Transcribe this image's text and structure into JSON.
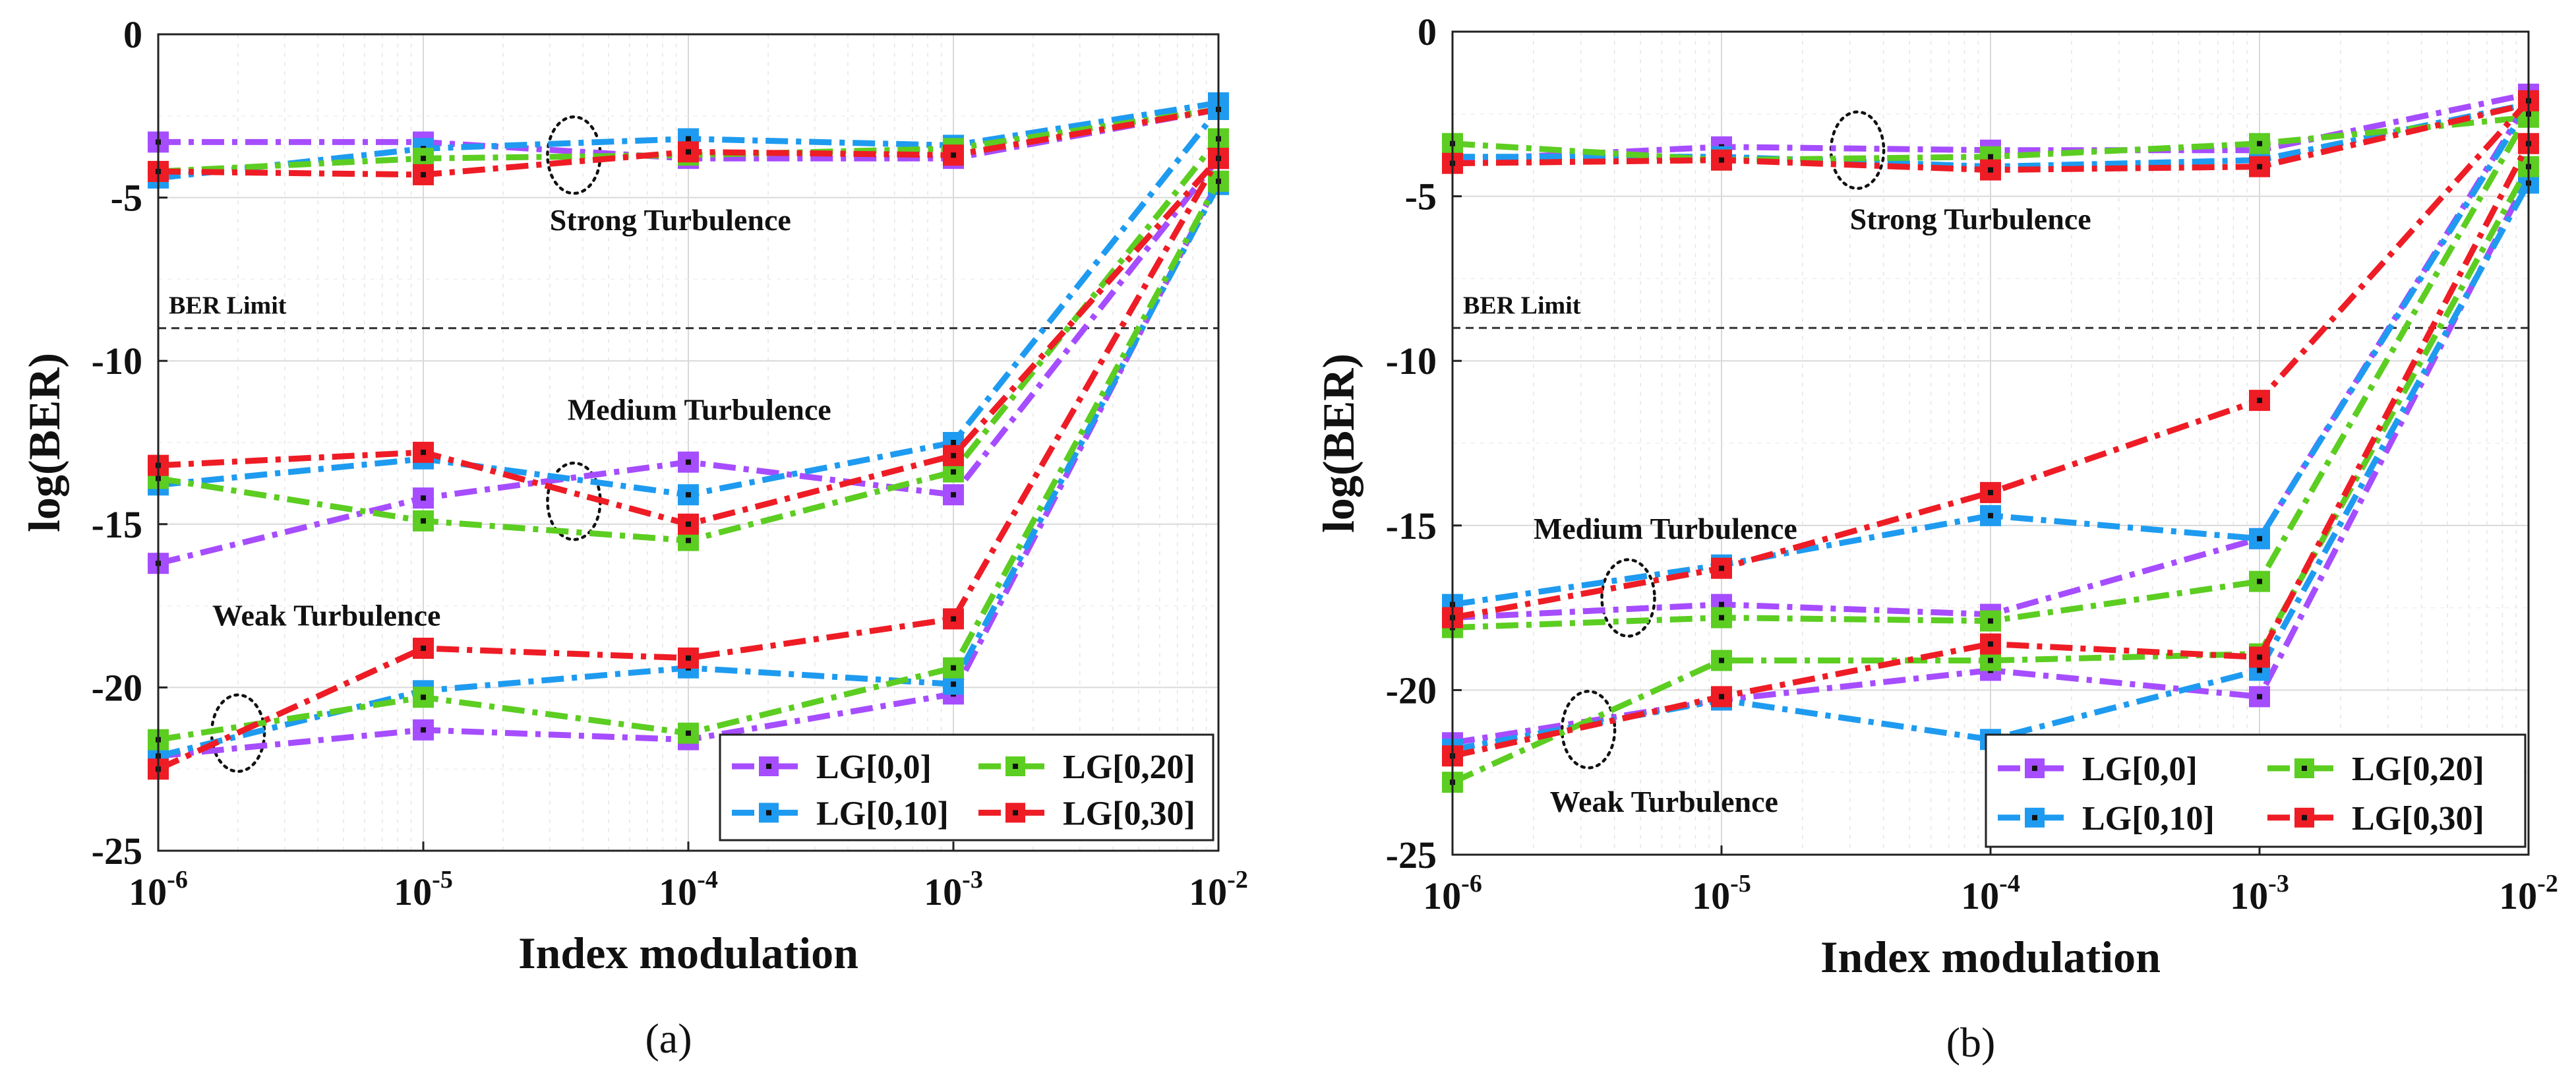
{
  "chart_data": [
    {
      "type": "line",
      "panel_label": "(a)",
      "xlabel": "Index modulation",
      "ylabel": "log(BER)",
      "x_scale": "log",
      "x": [
        1e-06,
        1e-05,
        0.0001,
        0.001,
        0.01
      ],
      "x_tick_labels": [
        {
          "base": "10",
          "exp": "-6"
        },
        {
          "base": "10",
          "exp": "-5"
        },
        {
          "base": "10",
          "exp": "-4"
        },
        {
          "base": "10",
          "exp": "-3"
        },
        {
          "base": "10",
          "exp": "-2"
        }
      ],
      "xlim": [
        1e-06,
        0.01
      ],
      "ylim": [
        -25,
        0
      ],
      "y_ticks": [
        0,
        -5,
        -10,
        -15,
        -20,
        -25
      ],
      "y_tick_labels": [
        "0",
        "-5",
        "-10",
        "-15",
        "-20",
        "-25"
      ],
      "grid": true,
      "ber_limit": {
        "value": -9,
        "label": "BER Limit"
      },
      "legend": {
        "placement": "bottom-right",
        "entries": [
          "LG[0,0]",
          "LG[0,20]",
          "LG[0,10]",
          "LG[0,30]"
        ]
      },
      "annotations": [
        {
          "text": "Strong Turbulence",
          "x": 3e-05,
          "y": -6.0
        },
        {
          "text": "Medium Turbulence",
          "x": 3.5e-05,
          "y": -11.8
        },
        {
          "text": "Weak Turbulence",
          "x": 1.6e-06,
          "y": -18.1
        }
      ],
      "ellipses": [
        {
          "x": 3.7e-05,
          "y": -3.7
        },
        {
          "x": 3.7e-05,
          "y": -14.3
        },
        {
          "x": 2e-06,
          "y": -21.4
        }
      ],
      "series": [
        {
          "name": "LG[0,0]",
          "color": "#a64dff",
          "group": "strong",
          "values": [
            -3.3,
            -3.3,
            -3.8,
            -3.8,
            -2.3
          ]
        },
        {
          "name": "LG[0,10]",
          "color": "#1e9bf0",
          "group": "strong",
          "values": [
            -4.4,
            -3.5,
            -3.2,
            -3.4,
            -2.1
          ]
        },
        {
          "name": "LG[0,20]",
          "color": "#5ccd21",
          "group": "strong",
          "values": [
            -4.2,
            -3.8,
            -3.7,
            -3.5,
            -2.3
          ]
        },
        {
          "name": "LG[0,30]",
          "color": "#ee1c25",
          "group": "strong",
          "values": [
            -4.2,
            -4.3,
            -3.6,
            -3.7,
            -2.3
          ]
        },
        {
          "name": "LG[0,0]",
          "color": "#a64dff",
          "group": "medium",
          "values": [
            -16.2,
            -14.2,
            -13.1,
            -14.1,
            -3.8
          ]
        },
        {
          "name": "LG[0,10]",
          "color": "#1e9bf0",
          "group": "medium",
          "values": [
            -13.8,
            -13.0,
            -14.1,
            -12.5,
            -2.3
          ]
        },
        {
          "name": "LG[0,20]",
          "color": "#5ccd21",
          "group": "medium",
          "values": [
            -13.6,
            -14.9,
            -15.5,
            -13.4,
            -3.2
          ]
        },
        {
          "name": "LG[0,30]",
          "color": "#ee1c25",
          "group": "medium",
          "values": [
            -13.2,
            -12.8,
            -15.0,
            -12.9,
            -3.8
          ]
        },
        {
          "name": "LG[0,0]",
          "color": "#a64dff",
          "group": "weak",
          "values": [
            -22.1,
            -21.3,
            -21.6,
            -20.2,
            -4.5
          ]
        },
        {
          "name": "LG[0,10]",
          "color": "#1e9bf0",
          "group": "weak",
          "values": [
            -22.1,
            -20.1,
            -19.4,
            -19.9,
            -4.6
          ]
        },
        {
          "name": "LG[0,20]",
          "color": "#5ccd21",
          "group": "weak",
          "values": [
            -21.6,
            -20.3,
            -21.4,
            -19.4,
            -4.5
          ]
        },
        {
          "name": "LG[0,30]",
          "color": "#ee1c25",
          "group": "weak",
          "values": [
            -22.5,
            -18.8,
            -19.1,
            -17.9,
            -3.8
          ]
        }
      ]
    },
    {
      "type": "line",
      "panel_label": "(b)",
      "xlabel": "Index modulation",
      "ylabel": "log(BER)",
      "x_scale": "log",
      "x": [
        1e-06,
        1e-05,
        0.0001,
        0.001,
        0.01
      ],
      "x_tick_labels": [
        {
          "base": "10",
          "exp": "-6"
        },
        {
          "base": "10",
          "exp": "-5"
        },
        {
          "base": "10",
          "exp": "-4"
        },
        {
          "base": "10",
          "exp": "-3"
        },
        {
          "base": "10",
          "exp": "-2"
        }
      ],
      "xlim": [
        1e-06,
        0.01
      ],
      "ylim": [
        -25,
        0
      ],
      "y_ticks": [
        0,
        -5,
        -10,
        -15,
        -20,
        -25
      ],
      "y_tick_labels": [
        "0",
        "-5",
        "-10",
        "-15",
        "-20",
        "-25"
      ],
      "grid": true,
      "ber_limit": {
        "value": -9,
        "label": "BER Limit"
      },
      "legend": {
        "placement": "bottom-right",
        "entries": [
          "LG[0,0]",
          "LG[0,20]",
          "LG[0,10]",
          "LG[0,30]"
        ]
      },
      "annotations": [
        {
          "text": "Strong Turbulence",
          "x": 3e-05,
          "y": -6.0
        },
        {
          "text": "Medium Turbulence",
          "x": 2e-06,
          "y": -15.4
        },
        {
          "text": "Weak Turbulence",
          "x": 2.3e-06,
          "y": -23.7
        }
      ],
      "ellipses": [
        {
          "x": 3.2e-05,
          "y": -3.6
        },
        {
          "x": 4.5e-06,
          "y": -17.2
        },
        {
          "x": 3.2e-06,
          "y": -21.2
        }
      ],
      "series": [
        {
          "name": "LG[0,0]",
          "color": "#a64dff",
          "group": "strong",
          "values": [
            -3.9,
            -3.5,
            -3.6,
            -3.6,
            -1.9
          ]
        },
        {
          "name": "LG[0,10]",
          "color": "#1e9bf0",
          "group": "strong",
          "values": [
            -3.8,
            -3.8,
            -4.1,
            -3.9,
            -2.2
          ]
        },
        {
          "name": "LG[0,20]",
          "color": "#5ccd21",
          "group": "strong",
          "values": [
            -3.4,
            -3.9,
            -3.8,
            -3.4,
            -2.6
          ]
        },
        {
          "name": "LG[0,30]",
          "color": "#ee1c25",
          "group": "strong",
          "values": [
            -4.0,
            -3.9,
            -4.2,
            -4.1,
            -2.2
          ]
        },
        {
          "name": "LG[0,0]",
          "color": "#a64dff",
          "group": "medium",
          "values": [
            -17.8,
            -17.4,
            -17.7,
            -15.4,
            -2.1
          ]
        },
        {
          "name": "LG[0,10]",
          "color": "#1e9bf0",
          "group": "medium",
          "values": [
            -17.4,
            -16.2,
            -14.7,
            -15.4,
            -2.2
          ]
        },
        {
          "name": "LG[0,20]",
          "color": "#5ccd21",
          "group": "medium",
          "values": [
            -18.1,
            -17.8,
            -17.9,
            -16.7,
            -2.5
          ]
        },
        {
          "name": "LG[0,30]",
          "color": "#ee1c25",
          "group": "medium",
          "values": [
            -17.8,
            -16.3,
            -14.0,
            -11.2,
            -2.1
          ]
        },
        {
          "name": "LG[0,0]",
          "color": "#a64dff",
          "group": "weak",
          "values": [
            -21.6,
            -20.3,
            -19.4,
            -20.2,
            -4.4
          ]
        },
        {
          "name": "LG[0,10]",
          "color": "#1e9bf0",
          "group": "weak",
          "values": [
            -21.8,
            -20.3,
            -21.5,
            -19.4,
            -4.6
          ]
        },
        {
          "name": "LG[0,20]",
          "color": "#5ccd21",
          "group": "weak",
          "values": [
            -22.8,
            -19.1,
            -19.1,
            -18.9,
            -4.1
          ]
        },
        {
          "name": "LG[0,30]",
          "color": "#ee1c25",
          "group": "weak",
          "values": [
            -22.0,
            -20.2,
            -18.6,
            -19.0,
            -3.4
          ]
        }
      ]
    }
  ]
}
